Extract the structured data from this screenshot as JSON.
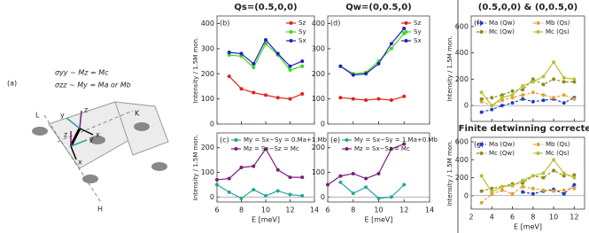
{
  "schematic": {
    "label": "(a)",
    "eq1": "σyy ~ Mz = Mc",
    "eq2": "σzz ~ My = Ma or Mb",
    "L": "L",
    "K": "K",
    "H": "H",
    "x1": "x",
    "y1": "y",
    "z1": "z",
    "x2": "x",
    "y2": "y",
    "z2": "z"
  },
  "chart_data": [
    {
      "type": "line",
      "title": "Qs=(0.5,0,0)",
      "label": "(b)",
      "ylabel": "Intensity / 1.5M mon.",
      "xlim": [
        6,
        14
      ],
      "xticks": [
        6,
        8,
        10,
        12,
        14
      ],
      "ylim": [
        0,
        430
      ],
      "yticks": [
        0,
        100,
        200,
        300,
        400
      ],
      "legend": "upper right",
      "xtick_labels": false,
      "x": [
        7,
        8,
        9,
        10,
        11,
        12,
        13
      ],
      "series": [
        {
          "name": "Sz",
          "color": "#e0201b",
          "values": [
            190,
            140,
            125,
            115,
            105,
            100,
            120
          ]
        },
        {
          "name": "Sy",
          "color": "#3fd81e",
          "values": [
            275,
            270,
            225,
            320,
            275,
            215,
            230
          ]
        },
        {
          "name": "Sx",
          "color": "#2020c0",
          "values": [
            285,
            280,
            240,
            335,
            280,
            230,
            250
          ]
        }
      ]
    },
    {
      "type": "line",
      "label": "(c)",
      "ylabel": "Intensity / 1.5M mon.",
      "xlabel": "E [meV]",
      "xlim": [
        6,
        14
      ],
      "xticks": [
        6,
        8,
        10,
        12,
        14
      ],
      "ylim": [
        -20,
        260
      ],
      "yticks": [
        0,
        100,
        200
      ],
      "legend": "upper left",
      "zero_line": true,
      "xtick_labels": true,
      "x": [
        6,
        7,
        8,
        9,
        10,
        11,
        12,
        13
      ],
      "series": [
        {
          "name": "My = Sx−Sy = 0.Ma+1.Mb",
          "color": "#26a69a",
          "values": [
            50,
            20,
            -5,
            30,
            5,
            25,
            10,
            5
          ]
        },
        {
          "name": "Mz = Sx−Sz = Mc",
          "color": "#7b1f7b",
          "values": [
            70,
            75,
            120,
            125,
            195,
            110,
            80,
            80
          ]
        }
      ]
    },
    {
      "type": "line",
      "title": "Qw=(0,0.5,0)",
      "label": "(d)",
      "xlim": [
        6,
        14
      ],
      "xticks": [
        6,
        8,
        10,
        12,
        14
      ],
      "ylim": [
        0,
        430
      ],
      "yticks": [
        0,
        100,
        200,
        300,
        400
      ],
      "legend": "upper right",
      "xtick_labels": false,
      "x": [
        7,
        8,
        9,
        10,
        11,
        12
      ],
      "series": [
        {
          "name": "Sz",
          "color": "#e0201b",
          "values": [
            105,
            100,
            95,
            100,
            95,
            110
          ]
        },
        {
          "name": "Sy",
          "color": "#3fd81e",
          "values": [
            230,
            200,
            205,
            250,
            300,
            360
          ]
        },
        {
          "name": "Sx",
          "color": "#2020c0",
          "values": [
            230,
            195,
            200,
            240,
            320,
            380
          ]
        }
      ]
    },
    {
      "type": "line",
      "label": "(e)",
      "xlabel": "E [meV]",
      "xlim": [
        6,
        14
      ],
      "xticks": [
        6,
        8,
        10,
        12,
        14
      ],
      "ylim": [
        -20,
        260
      ],
      "yticks": [
        0,
        100,
        200
      ],
      "legend": "upper left",
      "zero_line": true,
      "xtick_labels": true,
      "x": [
        6,
        7,
        8,
        9,
        10,
        11,
        12
      ],
      "series": [
        {
          "name": "My = Sx−Sy = 1.Ma+0.Mb",
          "color": "#26a69a",
          "values": [
            null,
            60,
            15,
            40,
            -5,
            0,
            50
          ]
        },
        {
          "name": "Mz = Sx−Sz = Mc",
          "color": "#7b1f7b",
          "values": [
            50,
            85,
            95,
            75,
            95,
            195,
            215
          ]
        }
      ]
    },
    {
      "type": "line",
      "title": "(0.5,0,0) & (0,0.5,0)",
      "label": "(f)",
      "ylabel": "Intensity / 1.5M mon.",
      "xlim": [
        2,
        13
      ],
      "xticks": [
        2,
        4,
        6,
        8,
        10,
        12
      ],
      "ylim": [
        -120,
        680
      ],
      "yticks": [
        0,
        200,
        400,
        600
      ],
      "legend": "top",
      "ncol": 2,
      "zero_line": true,
      "xtick_labels": false,
      "x": [
        3,
        4,
        5,
        6,
        7,
        8,
        9,
        10,
        11,
        12
      ],
      "series": [
        {
          "name": "Ma (Qw)",
          "color": "#1f3fbf",
          "dashed": true,
          "values": [
            -50,
            -30,
            0,
            20,
            50,
            30,
            40,
            50,
            20,
            60
          ]
        },
        {
          "name": "Mb (Qs)",
          "color": "#e8a030",
          "dashed": true,
          "values": [
            30,
            0,
            40,
            60,
            80,
            100,
            80,
            60,
            80,
            50
          ]
        },
        {
          "name": "Mc (Qw)",
          "color": "#8b8b20",
          "dashed": true,
          "values": [
            50,
            60,
            80,
            110,
            120,
            200,
            160,
            200,
            180,
            180
          ]
        },
        {
          "name": "Mc (Qs)",
          "color": "#b8c030",
          "dashed": false,
          "values": [
            100,
            0,
            60,
            80,
            150,
            180,
            220,
            330,
            210,
            200
          ]
        }
      ]
    },
    {
      "type": "line",
      "title": "Finite detwinning corrected",
      "label": "(g)",
      "ylabel": "Intensity / 1.5M mon.",
      "xlabel": "E [meV]",
      "xlim": [
        2,
        13
      ],
      "xticks": [
        2,
        4,
        6,
        8,
        10,
        12
      ],
      "ylim": [
        -150,
        650
      ],
      "yticks": [
        0,
        200,
        400,
        600
      ],
      "legend": "top",
      "ncol": 2,
      "zero_line": true,
      "xtick_labels": true,
      "x": [
        3,
        4,
        5,
        6,
        7,
        8,
        9,
        10,
        11,
        12
      ],
      "series": [
        {
          "name": "Ma (Qw)",
          "color": "#1f3fbf",
          "dashed": true,
          "values": [
            null,
            null,
            null,
            null,
            40,
            20,
            50,
            70,
            20,
            120
          ]
        },
        {
          "name": "Mb (Qs)",
          "color": "#e8a030",
          "dashed": true,
          "values": [
            -80,
            20,
            60,
            20,
            100,
            80,
            60,
            50,
            60,
            80
          ]
        },
        {
          "name": "Mc (Qw)",
          "color": "#8b8b20",
          "dashed": true,
          "values": [
            50,
            80,
            100,
            130,
            140,
            220,
            200,
            280,
            220,
            230
          ]
        },
        {
          "name": "Mc (Qs)",
          "color": "#b8c030",
          "dashed": false,
          "values": [
            220,
            40,
            100,
            110,
            170,
            220,
            250,
            400,
            250,
            200
          ]
        }
      ]
    }
  ]
}
